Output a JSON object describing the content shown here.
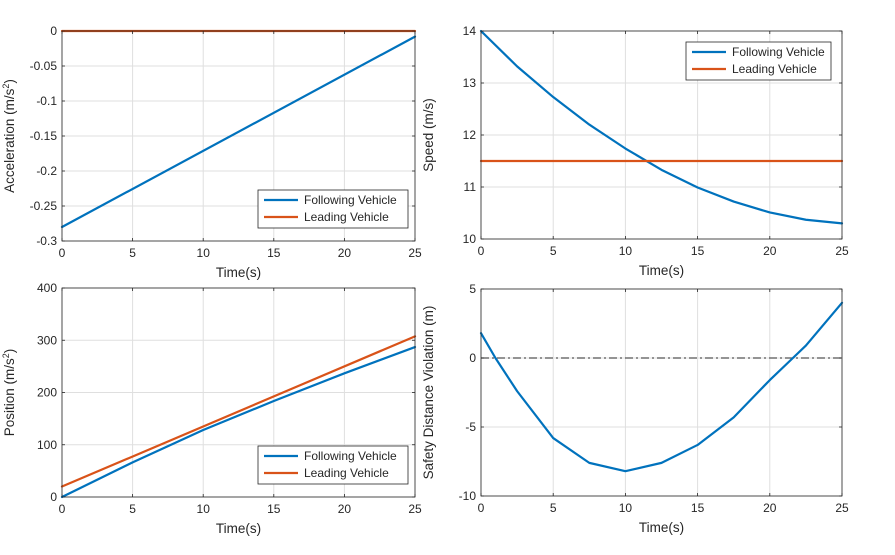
{
  "chart_data": [
    {
      "id": "acceleration",
      "type": "line",
      "title": "",
      "xlabel": "Time(s)",
      "ylabel": "Acceleration (m/s",
      "ylabel_sup": "2",
      "ylabel_end": ")",
      "xlim": [
        0,
        25
      ],
      "ylim": [
        -0.3,
        0
      ],
      "xticks": [
        0,
        5,
        10,
        15,
        20,
        25
      ],
      "xtick_labels": [
        "0",
        "5",
        "10",
        "15",
        "20",
        "25"
      ],
      "yticks": [
        -0.3,
        -0.25,
        -0.2,
        -0.15,
        -0.1,
        -0.05,
        0
      ],
      "ytick_labels": [
        "-0.3",
        "-0.25",
        "-0.2",
        "-0.15",
        "-0.1",
        "-0.05",
        "0"
      ],
      "grid": true,
      "legend": "bottom-right",
      "series": [
        {
          "name": "Following Vehicle",
          "color": "#0072BD",
          "x": [
            0,
            25
          ],
          "y": [
            -0.28,
            -0.008
          ]
        },
        {
          "name": "Leading Vehicle",
          "color": "#D95319",
          "x": [
            0,
            25
          ],
          "y": [
            0,
            0
          ]
        }
      ]
    },
    {
      "id": "speed",
      "type": "line",
      "title": "",
      "xlabel": "Time(s)",
      "ylabel": "Speed (m/s)",
      "xlim": [
        0,
        25
      ],
      "ylim": [
        10,
        14
      ],
      "xticks": [
        0,
        5,
        10,
        15,
        20,
        25
      ],
      "xtick_labels": [
        "0",
        "5",
        "10",
        "15",
        "20",
        "25"
      ],
      "yticks": [
        10,
        11,
        12,
        13,
        14
      ],
      "ytick_labels": [
        "10",
        "11",
        "12",
        "13",
        "14"
      ],
      "grid": true,
      "legend": "top-right",
      "series": [
        {
          "name": "Following Vehicle",
          "color": "#0072BD",
          "x": [
            0,
            2.5,
            5,
            7.5,
            10,
            12.5,
            15,
            17.5,
            20,
            22.5,
            25
          ],
          "y": [
            14,
            13.32,
            12.73,
            12.2,
            11.74,
            11.33,
            10.99,
            10.72,
            10.51,
            10.37,
            10.3
          ]
        },
        {
          "name": "Leading Vehicle",
          "color": "#D95319",
          "x": [
            0,
            25
          ],
          "y": [
            11.5,
            11.5
          ]
        }
      ]
    },
    {
      "id": "position",
      "type": "line",
      "title": "",
      "xlabel": "Time(s)",
      "ylabel": "Position (m/s",
      "ylabel_sup": "2",
      "ylabel_end": ")",
      "xlim": [
        0,
        25
      ],
      "ylim": [
        0,
        400
      ],
      "xticks": [
        0,
        5,
        10,
        15,
        20,
        25
      ],
      "xtick_labels": [
        "0",
        "5",
        "10",
        "15",
        "20",
        "25"
      ],
      "yticks": [
        0,
        100,
        200,
        300,
        400
      ],
      "ytick_labels": [
        "0",
        "100",
        "200",
        "300",
        "400"
      ],
      "grid": true,
      "legend": "bottom-right",
      "series": [
        {
          "name": "Following Vehicle",
          "color": "#0072BD",
          "x": [
            0,
            5,
            10,
            15,
            20,
            25
          ],
          "y": [
            0,
            66.3,
            128.3,
            183.7,
            236.7,
            287
          ]
        },
        {
          "name": "Leading Vehicle",
          "color": "#D95319",
          "x": [
            0,
            25
          ],
          "y": [
            20,
            307.5
          ]
        }
      ]
    },
    {
      "id": "safety",
      "type": "line",
      "title": "",
      "xlabel": "Time(s)",
      "ylabel": "Safety Distance Violation (m)",
      "xlim": [
        0,
        25
      ],
      "ylim": [
        -10,
        5
      ],
      "xticks": [
        0,
        5,
        10,
        15,
        20,
        25
      ],
      "xtick_labels": [
        "0",
        "5",
        "10",
        "15",
        "20",
        "25"
      ],
      "yticks": [
        -10,
        -5,
        0,
        5
      ],
      "ytick_labels": [
        "-10",
        "-5",
        "0",
        "5"
      ],
      "grid": true,
      "legend": "none",
      "reference_line": {
        "y": 0,
        "style": "dash-dot",
        "color": "#555555"
      },
      "series": [
        {
          "name": "Safety Distance Violation",
          "color": "#0072BD",
          "x": [
            0,
            1,
            2.5,
            5,
            7.5,
            10,
            12.5,
            15,
            17.5,
            20,
            21.6,
            22.5,
            25
          ],
          "y": [
            1.8,
            0,
            -2.4,
            -5.8,
            -7.6,
            -8.2,
            -7.6,
            -6.3,
            -4.3,
            -1.6,
            0,
            0.9,
            4
          ]
        }
      ]
    }
  ]
}
